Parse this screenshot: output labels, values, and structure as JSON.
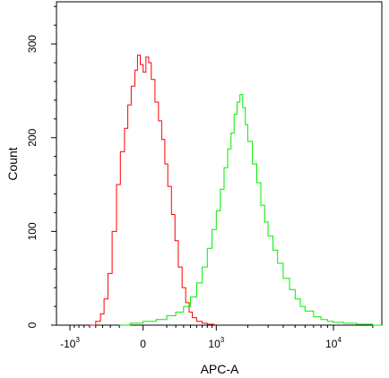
{
  "chart_data": {
    "type": "line",
    "xlabel": "APC-A",
    "ylabel": "Count",
    "x_scale": "biexponential",
    "xlim": [
      -4000,
      50000
    ],
    "ylim": [
      0,
      345
    ],
    "x_ticks": [
      {
        "value": -1000,
        "base": "-10",
        "exp": "3"
      },
      {
        "value": 0,
        "base": "0",
        "exp": ""
      },
      {
        "value": 1000,
        "base": "10",
        "exp": "3"
      },
      {
        "value": 10000,
        "base": "10",
        "exp": "4"
      }
    ],
    "y_ticks": [
      {
        "value": 0,
        "label": "0"
      },
      {
        "value": 100,
        "label": "100"
      },
      {
        "value": 200,
        "label": "200"
      },
      {
        "value": 300,
        "label": "300"
      }
    ],
    "grid": false,
    "legend": "none",
    "series": [
      {
        "color": "#ff0000",
        "x": [
          -600,
          -500,
          -430,
          -380,
          -330,
          -280,
          -230,
          -190,
          -150,
          -120,
          -90,
          -60,
          -40,
          -20,
          0,
          20,
          40,
          60,
          90,
          120,
          150,
          180,
          210,
          250,
          290,
          330,
          380,
          430,
          480,
          530,
          600,
          700,
          800,
          950
        ],
        "y": [
          0,
          4,
          12,
          28,
          55,
          100,
          150,
          185,
          210,
          235,
          255,
          272,
          288,
          278,
          270,
          286,
          280,
          262,
          238,
          218,
          198,
          172,
          148,
          118,
          90,
          62,
          40,
          24,
          14,
          8,
          4,
          2,
          1,
          0
        ]
      },
      {
        "color": "#00ee00",
        "x": [
          -200,
          -100,
          0,
          100,
          200,
          300,
          400,
          500,
          600,
          700,
          800,
          900,
          1000,
          1100,
          1200,
          1300,
          1400,
          1500,
          1600,
          1700,
          1800,
          1900,
          2000,
          2200,
          2400,
          2600,
          2800,
          3000,
          3300,
          3600,
          4000,
          4500,
          5000,
          5500,
          6000,
          7000,
          8000,
          9000,
          10000,
          12000,
          15000,
          20000,
          28000
        ],
        "y": [
          0,
          2,
          4,
          6,
          10,
          14,
          20,
          30,
          45,
          62,
          82,
          102,
          122,
          145,
          168,
          188,
          205,
          225,
          238,
          246,
          232,
          214,
          196,
          172,
          152,
          128,
          110,
          95,
          80,
          66,
          50,
          38,
          28,
          20,
          15,
          9,
          6,
          4,
          3,
          2,
          1,
          0,
          0
        ]
      }
    ]
  }
}
